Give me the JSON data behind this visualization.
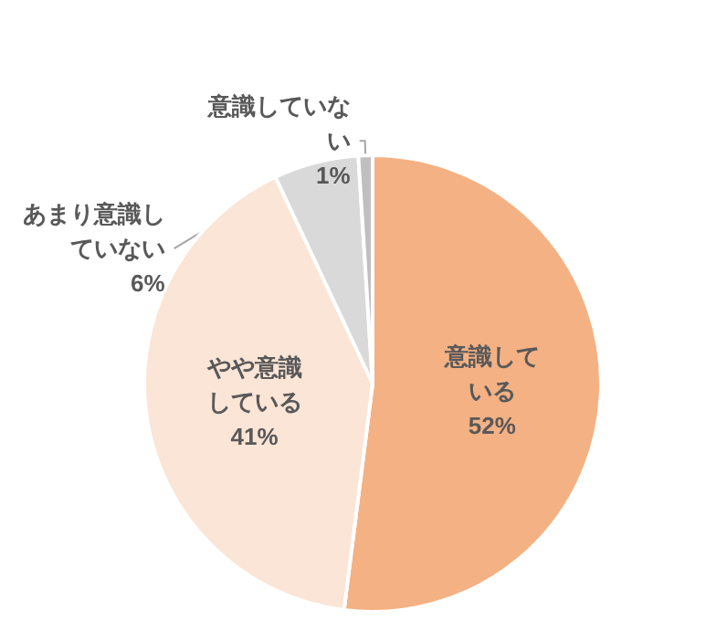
{
  "chart_data": {
    "type": "pie",
    "categories": [
      "意識している",
      "やや意識している",
      "あまり意識していない",
      "意識していない"
    ],
    "values": [
      52,
      41,
      6,
      1
    ],
    "colors": [
      "#f4b183",
      "#fbe5d6",
      "#d9d9d9",
      "#bfbfbf"
    ],
    "value_labels": [
      "52%",
      "41%",
      "6%",
      "1%"
    ],
    "legend": false
  }
}
